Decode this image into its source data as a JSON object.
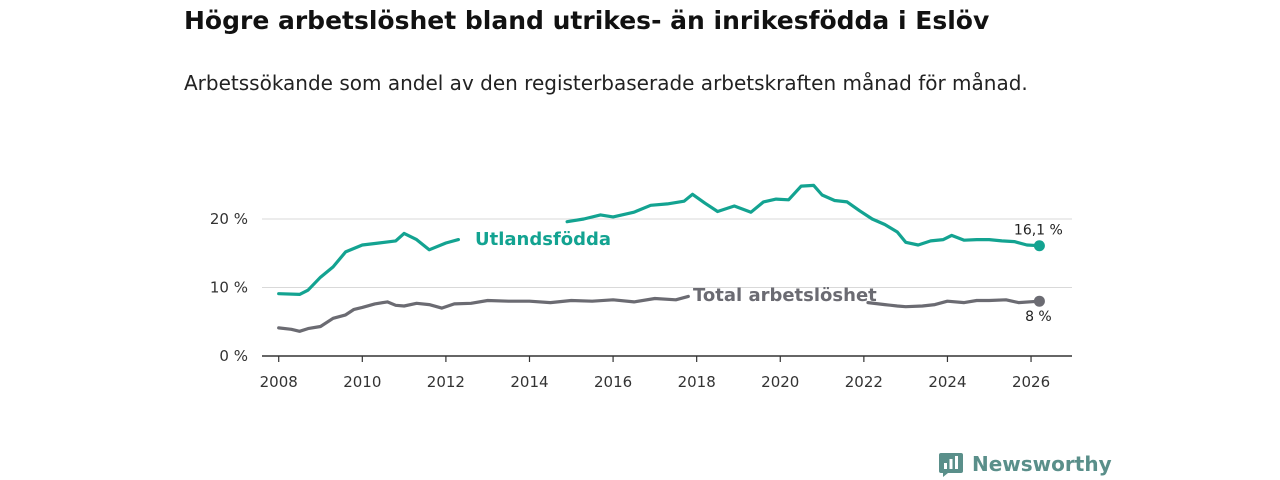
{
  "title": "Högre arbetslöshet bland utrikes- än inrikesfödda i Eslöv",
  "subtitle": "Arbetssökande som andel av den registerbaserade arbetskraften månad för månad.",
  "brand": {
    "name": "Newsworthy",
    "icon": "newsworthy-logo-icon",
    "color": "#5a8f8a"
  },
  "chart_data": {
    "type": "line",
    "title": "Högre arbetslöshet bland utrikes- än inrikesfödda i Eslöv",
    "subtitle": "Arbetssökande som andel av den registerbaserade arbetskraften månad för månad.",
    "xlabel": "",
    "ylabel": "",
    "xlim": [
      2007,
      2027
    ],
    "ylim": [
      0,
      25
    ],
    "grid": "horizontal",
    "x_ticks": [
      2008,
      2010,
      2012,
      2014,
      2016,
      2018,
      2020,
      2022,
      2024,
      2026
    ],
    "x_tick_labels": [
      "2008",
      "2010",
      "2012",
      "2014",
      "2016",
      "2018",
      "2020",
      "2022",
      "2024",
      "2026"
    ],
    "y_ticks": [
      0,
      10,
      20
    ],
    "y_tick_labels": [
      "0 %",
      "10 %",
      "20 %"
    ],
    "series": [
      {
        "name": "Utlandsfödda",
        "color": "#13a391",
        "end_label": "16,1 %",
        "points": [
          [
            2008.0,
            9.1
          ],
          [
            2008.5,
            9.0
          ],
          [
            2008.7,
            9.6
          ],
          [
            2009.0,
            11.5
          ],
          [
            2009.3,
            13.0
          ],
          [
            2009.6,
            15.2
          ],
          [
            2010.0,
            16.2
          ],
          [
            2010.4,
            16.5
          ],
          [
            2010.8,
            16.8
          ],
          [
            2011.0,
            17.9
          ],
          [
            2011.3,
            17.0
          ],
          [
            2011.6,
            15.5
          ],
          [
            2012.0,
            16.5
          ],
          [
            2012.3,
            17.0
          ],
          [
            2014.9,
            19.6
          ],
          [
            2015.3,
            20.0
          ],
          [
            2015.7,
            20.6
          ],
          [
            2016.0,
            20.3
          ],
          [
            2016.5,
            21.0
          ],
          [
            2016.9,
            22.0
          ],
          [
            2017.3,
            22.2
          ],
          [
            2017.7,
            22.6
          ],
          [
            2017.9,
            23.6
          ],
          [
            2018.2,
            22.3
          ],
          [
            2018.5,
            21.1
          ],
          [
            2018.9,
            21.9
          ],
          [
            2019.3,
            21.0
          ],
          [
            2019.6,
            22.5
          ],
          [
            2019.9,
            22.9
          ],
          [
            2020.2,
            22.8
          ],
          [
            2020.5,
            24.8
          ],
          [
            2020.8,
            24.9
          ],
          [
            2021.0,
            23.5
          ],
          [
            2021.3,
            22.7
          ],
          [
            2021.6,
            22.5
          ],
          [
            2021.9,
            21.2
          ],
          [
            2022.2,
            20.0
          ],
          [
            2022.5,
            19.2
          ],
          [
            2022.8,
            18.1
          ],
          [
            2023.0,
            16.6
          ],
          [
            2023.3,
            16.2
          ],
          [
            2023.6,
            16.8
          ],
          [
            2023.9,
            17.0
          ],
          [
            2024.1,
            17.6
          ],
          [
            2024.4,
            16.9
          ],
          [
            2024.7,
            17.0
          ],
          [
            2025.0,
            17.0
          ],
          [
            2025.3,
            16.8
          ],
          [
            2025.6,
            16.7
          ],
          [
            2025.9,
            16.2
          ],
          [
            2026.2,
            16.1
          ]
        ]
      },
      {
        "name": "Total arbetslöshet",
        "color": "#6b6b72",
        "end_label": "8 %",
        "points": [
          [
            2008.0,
            4.1
          ],
          [
            2008.3,
            3.9
          ],
          [
            2008.5,
            3.6
          ],
          [
            2008.7,
            4.0
          ],
          [
            2009.0,
            4.3
          ],
          [
            2009.3,
            5.5
          ],
          [
            2009.6,
            6.0
          ],
          [
            2009.8,
            6.8
          ],
          [
            2010.0,
            7.1
          ],
          [
            2010.3,
            7.6
          ],
          [
            2010.6,
            7.9
          ],
          [
            2010.8,
            7.4
          ],
          [
            2011.0,
            7.3
          ],
          [
            2011.3,
            7.7
          ],
          [
            2011.6,
            7.5
          ],
          [
            2011.9,
            7.0
          ],
          [
            2012.2,
            7.6
          ],
          [
            2012.6,
            7.7
          ],
          [
            2013.0,
            8.1
          ],
          [
            2013.5,
            8.0
          ],
          [
            2014.0,
            8.0
          ],
          [
            2014.5,
            7.8
          ],
          [
            2015.0,
            8.1
          ],
          [
            2015.5,
            8.0
          ],
          [
            2016.0,
            8.2
          ],
          [
            2016.5,
            7.9
          ],
          [
            2017.0,
            8.4
          ],
          [
            2017.5,
            8.2
          ],
          [
            2017.8,
            8.7
          ],
          [
            2022.1,
            7.8
          ],
          [
            2022.5,
            7.5
          ],
          [
            2022.8,
            7.3
          ],
          [
            2023.0,
            7.2
          ],
          [
            2023.4,
            7.3
          ],
          [
            2023.7,
            7.5
          ],
          [
            2024.0,
            8.0
          ],
          [
            2024.4,
            7.8
          ],
          [
            2024.7,
            8.1
          ],
          [
            2025.0,
            8.1
          ],
          [
            2025.4,
            8.2
          ],
          [
            2025.7,
            7.8
          ],
          [
            2026.2,
            8.0
          ]
        ]
      }
    ]
  }
}
